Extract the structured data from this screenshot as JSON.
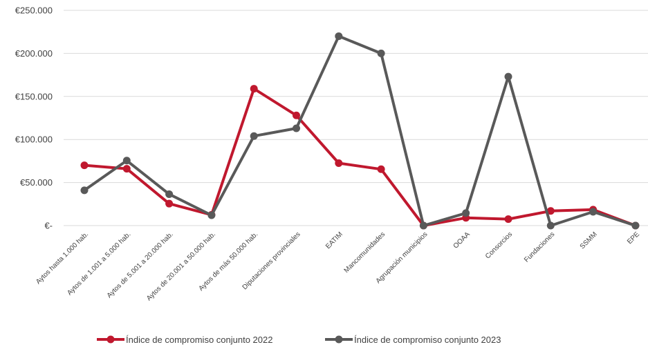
{
  "chart_data": {
    "type": "line",
    "title": "",
    "xlabel": "",
    "ylabel": "",
    "ylim": [
      0,
      250000
    ],
    "yticks": [
      0,
      50000,
      100000,
      150000,
      200000,
      250000
    ],
    "ytick_labels": [
      "€-",
      "€50.000",
      "€100.000",
      "€150.000",
      "€200.000",
      "€250.000"
    ],
    "grid": "horizontal",
    "legend_position": "bottom",
    "categories": [
      "Aytos hasta 1.000 hab.",
      "Aytos de 1.001 a 5.000 hab.",
      "Aytos de 5.001 a 20.000 hab.",
      "Aytos de 20.001 a 50.000 hab.",
      "Aytos de más 50.000 hab.",
      "Diputaciones provinciales",
      "EATIM",
      "Mancomunidades",
      "Agrupación municipios",
      "OOAA",
      "Consorcios",
      "Fundaciones",
      "SSMM",
      "EPE"
    ],
    "series": [
      {
        "name": "Índice de compromiso conjunto 2022",
        "color": "#c0182e",
        "values": [
          70000,
          66000,
          25500,
          12500,
          159000,
          128000,
          72500,
          65500,
          0,
          9000,
          7500,
          17000,
          18500,
          0
        ]
      },
      {
        "name": "Índice de compromiso conjunto 2023",
        "color": "#595959",
        "values": [
          41000,
          75500,
          36500,
          12000,
          104000,
          113000,
          220000,
          200000,
          0,
          14500,
          173000,
          0,
          16000,
          0
        ]
      }
    ]
  }
}
